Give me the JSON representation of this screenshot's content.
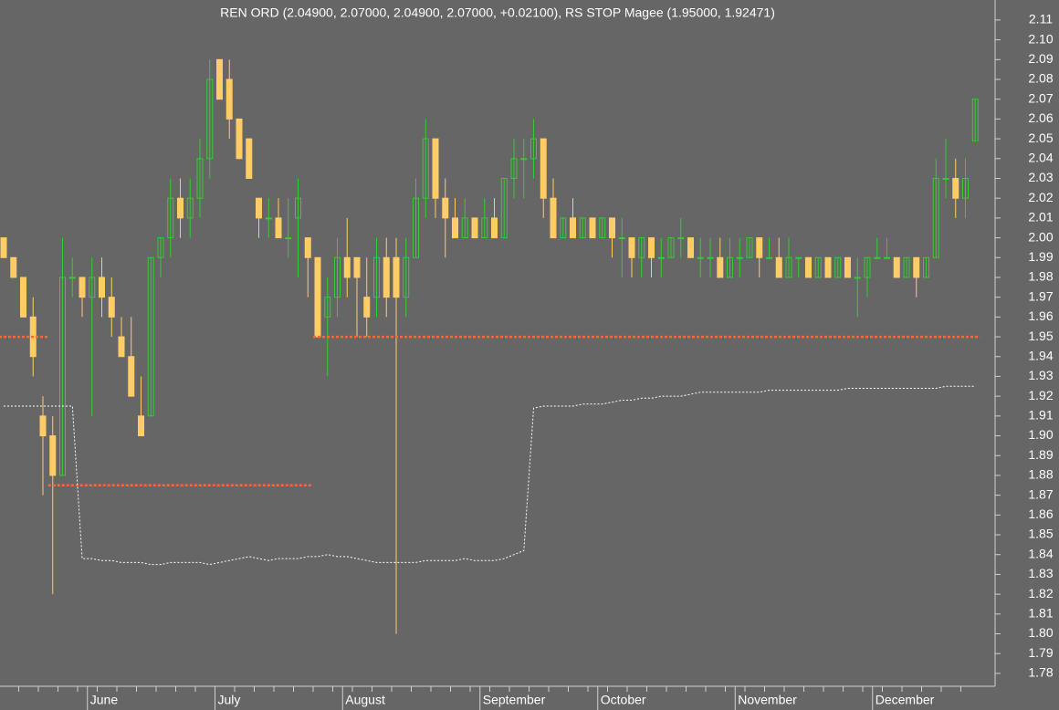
{
  "chart_data": {
    "type": "candlestick",
    "title": "REN ORD (2.04900, 2.07000, 2.04900, 2.07000, +0.02100), RS STOP Magee (1.95000, 1.92471)",
    "categories": [
      null,
      null,
      null,
      null,
      null,
      null,
      null,
      null,
      null,
      "June",
      null,
      null,
      null,
      null,
      null,
      null,
      null,
      null,
      null,
      null,
      null,
      null,
      "July",
      null,
      null,
      null,
      null,
      null,
      null,
      null,
      null,
      null,
      null,
      null,
      null,
      "August",
      null,
      null,
      null,
      null,
      null,
      null,
      null,
      null,
      null,
      null,
      null,
      null,
      null,
      "September",
      null,
      null,
      null,
      null,
      null,
      null,
      null,
      null,
      null,
      null,
      null,
      "October",
      null,
      null,
      null,
      null,
      null,
      null,
      null,
      null,
      null,
      null,
      null,
      null,
      null,
      "November",
      null,
      null,
      null,
      null,
      null,
      null,
      null,
      null,
      null,
      null,
      null,
      null,
      null,
      "December",
      null,
      null,
      null,
      null,
      null,
      null,
      null,
      null,
      null,
      null
    ],
    "open": [
      2.0,
      1.99,
      1.98,
      1.96,
      1.91,
      1.9,
      1.88,
      1.98,
      1.98,
      1.97,
      1.98,
      1.97,
      1.95,
      1.94,
      1.91,
      1.91,
      1.99,
      2.0,
      2.02,
      2.01,
      2.02,
      2.04,
      2.09,
      2.08,
      2.06,
      2.05,
      2.02,
      2.01,
      2.01,
      2.0,
      2.01,
      2.0,
      1.99,
      1.96,
      1.97,
      1.99,
      1.99,
      1.97,
      1.97,
      1.99,
      1.99,
      1.97,
      1.99,
      2.02,
      2.05,
      2.02,
      2.01,
      2.0,
      2.01,
      2.0,
      2.01,
      2.0,
      2.03,
      2.04,
      2.04,
      2.05,
      2.02,
      2.0,
      2.01,
      2.0,
      2.01,
      2.0,
      2.01,
      2.0,
      2.0,
      1.99,
      2.0,
      1.99,
      1.99,
      2.0,
      2.0,
      1.99,
      1.99,
      1.99,
      1.98,
      1.99,
      1.99,
      2.0,
      1.99,
      1.99,
      1.98,
      1.99,
      1.99,
      1.98,
      1.99,
      1.98,
      1.99,
      1.98,
      1.98,
      1.99,
      1.99,
      1.99,
      1.98,
      1.99,
      1.98,
      1.99,
      2.03,
      2.03,
      2.02,
      2.049
    ],
    "high": [
      2.0,
      1.99,
      1.98,
      1.97,
      1.92,
      1.91,
      2.0,
      1.99,
      1.98,
      1.99,
      1.99,
      1.98,
      1.96,
      1.96,
      1.93,
      1.99,
      2.0,
      2.03,
      2.03,
      2.03,
      2.05,
      2.09,
      2.09,
      2.09,
      2.06,
      2.05,
      2.02,
      2.02,
      2.02,
      2.02,
      2.03,
      2.0,
      1.99,
      1.98,
      2.0,
      2.01,
      1.99,
      1.99,
      2.0,
      2.0,
      2.0,
      2.0,
      2.03,
      2.06,
      2.05,
      2.03,
      2.02,
      2.02,
      2.01,
      2.02,
      2.02,
      2.03,
      2.05,
      2.05,
      2.06,
      2.05,
      2.03,
      2.01,
      2.02,
      2.01,
      2.01,
      2.01,
      2.01,
      2.01,
      2.0,
      2.0,
      2.0,
      2.0,
      2.0,
      2.01,
      2.0,
      2.0,
      2.0,
      2.0,
      2.0,
      2.0,
      2.0,
      2.0,
      2.0,
      2.0,
      2.0,
      1.99,
      1.99,
      1.99,
      1.99,
      1.99,
      1.99,
      1.99,
      1.99,
      2.0,
      2.0,
      1.99,
      1.99,
      1.99,
      1.99,
      2.04,
      2.05,
      2.04,
      2.04,
      2.07
    ],
    "low": [
      1.99,
      1.98,
      1.96,
      1.93,
      1.87,
      1.82,
      1.88,
      1.97,
      1.96,
      1.91,
      1.96,
      1.95,
      1.94,
      1.92,
      1.9,
      1.91,
      1.98,
      1.99,
      2.0,
      2.0,
      2.01,
      2.03,
      2.07,
      2.05,
      2.04,
      2.03,
      2.0,
      2.0,
      2.0,
      1.99,
      1.98,
      1.97,
      1.95,
      1.93,
      1.96,
      1.97,
      1.95,
      1.95,
      1.96,
      1.96,
      1.8,
      1.96,
      1.99,
      2.01,
      2.01,
      1.99,
      2.0,
      2.0,
      2.0,
      2.0,
      2.0,
      2.0,
      2.02,
      2.02,
      2.03,
      2.01,
      2.0,
      2.0,
      2.0,
      2.0,
      2.0,
      2.0,
      1.99,
      1.98,
      1.98,
      1.98,
      1.98,
      1.98,
      1.99,
      1.99,
      1.99,
      1.98,
      1.98,
      1.98,
      1.98,
      1.98,
      1.99,
      1.98,
      1.99,
      1.98,
      1.98,
      1.98,
      1.98,
      1.98,
      1.98,
      1.98,
      1.98,
      1.96,
      1.97,
      1.99,
      1.99,
      1.98,
      1.98,
      1.97,
      1.98,
      1.99,
      2.02,
      2.01,
      2.01,
      2.049
    ],
    "close": [
      1.99,
      1.98,
      1.96,
      1.94,
      1.9,
      1.88,
      1.98,
      1.98,
      1.97,
      1.98,
      1.97,
      1.96,
      1.94,
      1.92,
      1.9,
      1.99,
      2.0,
      2.02,
      2.01,
      2.02,
      2.04,
      2.08,
      2.07,
      2.06,
      2.04,
      2.03,
      2.01,
      2.01,
      2.0,
      2.0,
      2.02,
      1.99,
      1.95,
      1.97,
      1.99,
      1.98,
      1.98,
      1.96,
      1.99,
      1.97,
      1.97,
      1.99,
      2.02,
      2.05,
      2.02,
      2.01,
      2.0,
      2.01,
      2.0,
      2.01,
      2.0,
      2.03,
      2.04,
      2.04,
      2.05,
      2.02,
      2.0,
      2.01,
      2.0,
      2.01,
      2.0,
      2.01,
      2.0,
      2.0,
      1.99,
      2.0,
      1.99,
      1.99,
      2.0,
      2.0,
      1.99,
      1.99,
      1.99,
      1.98,
      1.99,
      1.99,
      2.0,
      1.99,
      1.99,
      1.98,
      1.99,
      1.99,
      1.98,
      1.99,
      1.98,
      1.99,
      1.98,
      1.98,
      1.99,
      1.99,
      1.99,
      1.98,
      1.99,
      1.98,
      1.99,
      2.03,
      2.03,
      2.02,
      2.03,
      2.07
    ],
    "up_color": "#33cc33",
    "down_color": "#ffcc66",
    "lines": [
      {
        "color": "#ff6633",
        "values": [
          1.95,
          1.95,
          1.95,
          1.95,
          1.95,
          1.875,
          1.875,
          1.875,
          1.875,
          1.875,
          1.875,
          1.875,
          1.875,
          1.875,
          1.875,
          1.875,
          1.875,
          1.875,
          1.875,
          1.875,
          1.875,
          1.875,
          1.875,
          1.875,
          1.875,
          1.875,
          1.875,
          1.875,
          1.875,
          1.875,
          1.875,
          1.875,
          1.95,
          1.95,
          1.95,
          1.95,
          1.95,
          1.95,
          1.95,
          1.95,
          1.95,
          1.95,
          1.95,
          1.95,
          1.95,
          1.95,
          1.95,
          1.95,
          1.95,
          1.95,
          1.95,
          1.95,
          1.95,
          1.95,
          1.95,
          1.95,
          1.95,
          1.95,
          1.95,
          1.95,
          1.95,
          1.95,
          1.95,
          1.95,
          1.95,
          1.95,
          1.95,
          1.95,
          1.95,
          1.95,
          1.95,
          1.95,
          1.95,
          1.95,
          1.95,
          1.95,
          1.95,
          1.95,
          1.95,
          1.95,
          1.95,
          1.95,
          1.95,
          1.95,
          1.95,
          1.95,
          1.95,
          1.95,
          1.95,
          1.95,
          1.95,
          1.95,
          1.95,
          1.95,
          1.95,
          1.95,
          1.95,
          1.95,
          1.95,
          1.95
        ]
      },
      {
        "color": "#ffffff",
        "values": [
          1.915,
          1.915,
          1.915,
          1.915,
          1.915,
          1.915,
          1.915,
          1.915,
          1.838,
          1.838,
          1.837,
          1.837,
          1.836,
          1.836,
          1.836,
          1.835,
          1.835,
          1.836,
          1.836,
          1.836,
          1.836,
          1.835,
          1.836,
          1.837,
          1.838,
          1.839,
          1.838,
          1.837,
          1.838,
          1.838,
          1.838,
          1.839,
          1.839,
          1.84,
          1.839,
          1.839,
          1.838,
          1.837,
          1.836,
          1.836,
          1.836,
          1.836,
          1.836,
          1.837,
          1.837,
          1.837,
          1.837,
          1.838,
          1.837,
          1.837,
          1.837,
          1.838,
          1.84,
          1.842,
          1.914,
          1.915,
          1.915,
          1.915,
          1.915,
          1.916,
          1.916,
          1.916,
          1.917,
          1.918,
          1.918,
          1.919,
          1.919,
          1.92,
          1.92,
          1.92,
          1.921,
          1.922,
          1.922,
          1.922,
          1.922,
          1.922,
          1.922,
          1.922,
          1.923,
          1.923,
          1.923,
          1.923,
          1.923,
          1.923,
          1.923,
          1.923,
          1.924,
          1.924,
          1.924,
          1.924,
          1.924,
          1.924,
          1.924,
          1.924,
          1.924,
          1.924,
          1.925,
          1.925,
          1.925,
          1.925
        ]
      }
    ],
    "ylim": [
      1.7735,
      2.1201
    ],
    "yticks": [
      1.78,
      1.79,
      {
        "value": 1.8,
        "label": "1.80"
      },
      1.81,
      1.82,
      1.83,
      1.84,
      1.85,
      1.86,
      1.87,
      1.88,
      1.89,
      {
        "value": 1.9,
        "label": "1.90"
      },
      1.91,
      1.92,
      1.93,
      1.94,
      1.95,
      1.96,
      1.97,
      1.98,
      1.99,
      {
        "value": 2,
        "label": "2.00"
      },
      2.01,
      2.02,
      2.03,
      2.04,
      2.05,
      2.06,
      2.07,
      2.08,
      2.09,
      {
        "value": 2.1,
        "label": "2.10"
      },
      2.11
    ]
  }
}
